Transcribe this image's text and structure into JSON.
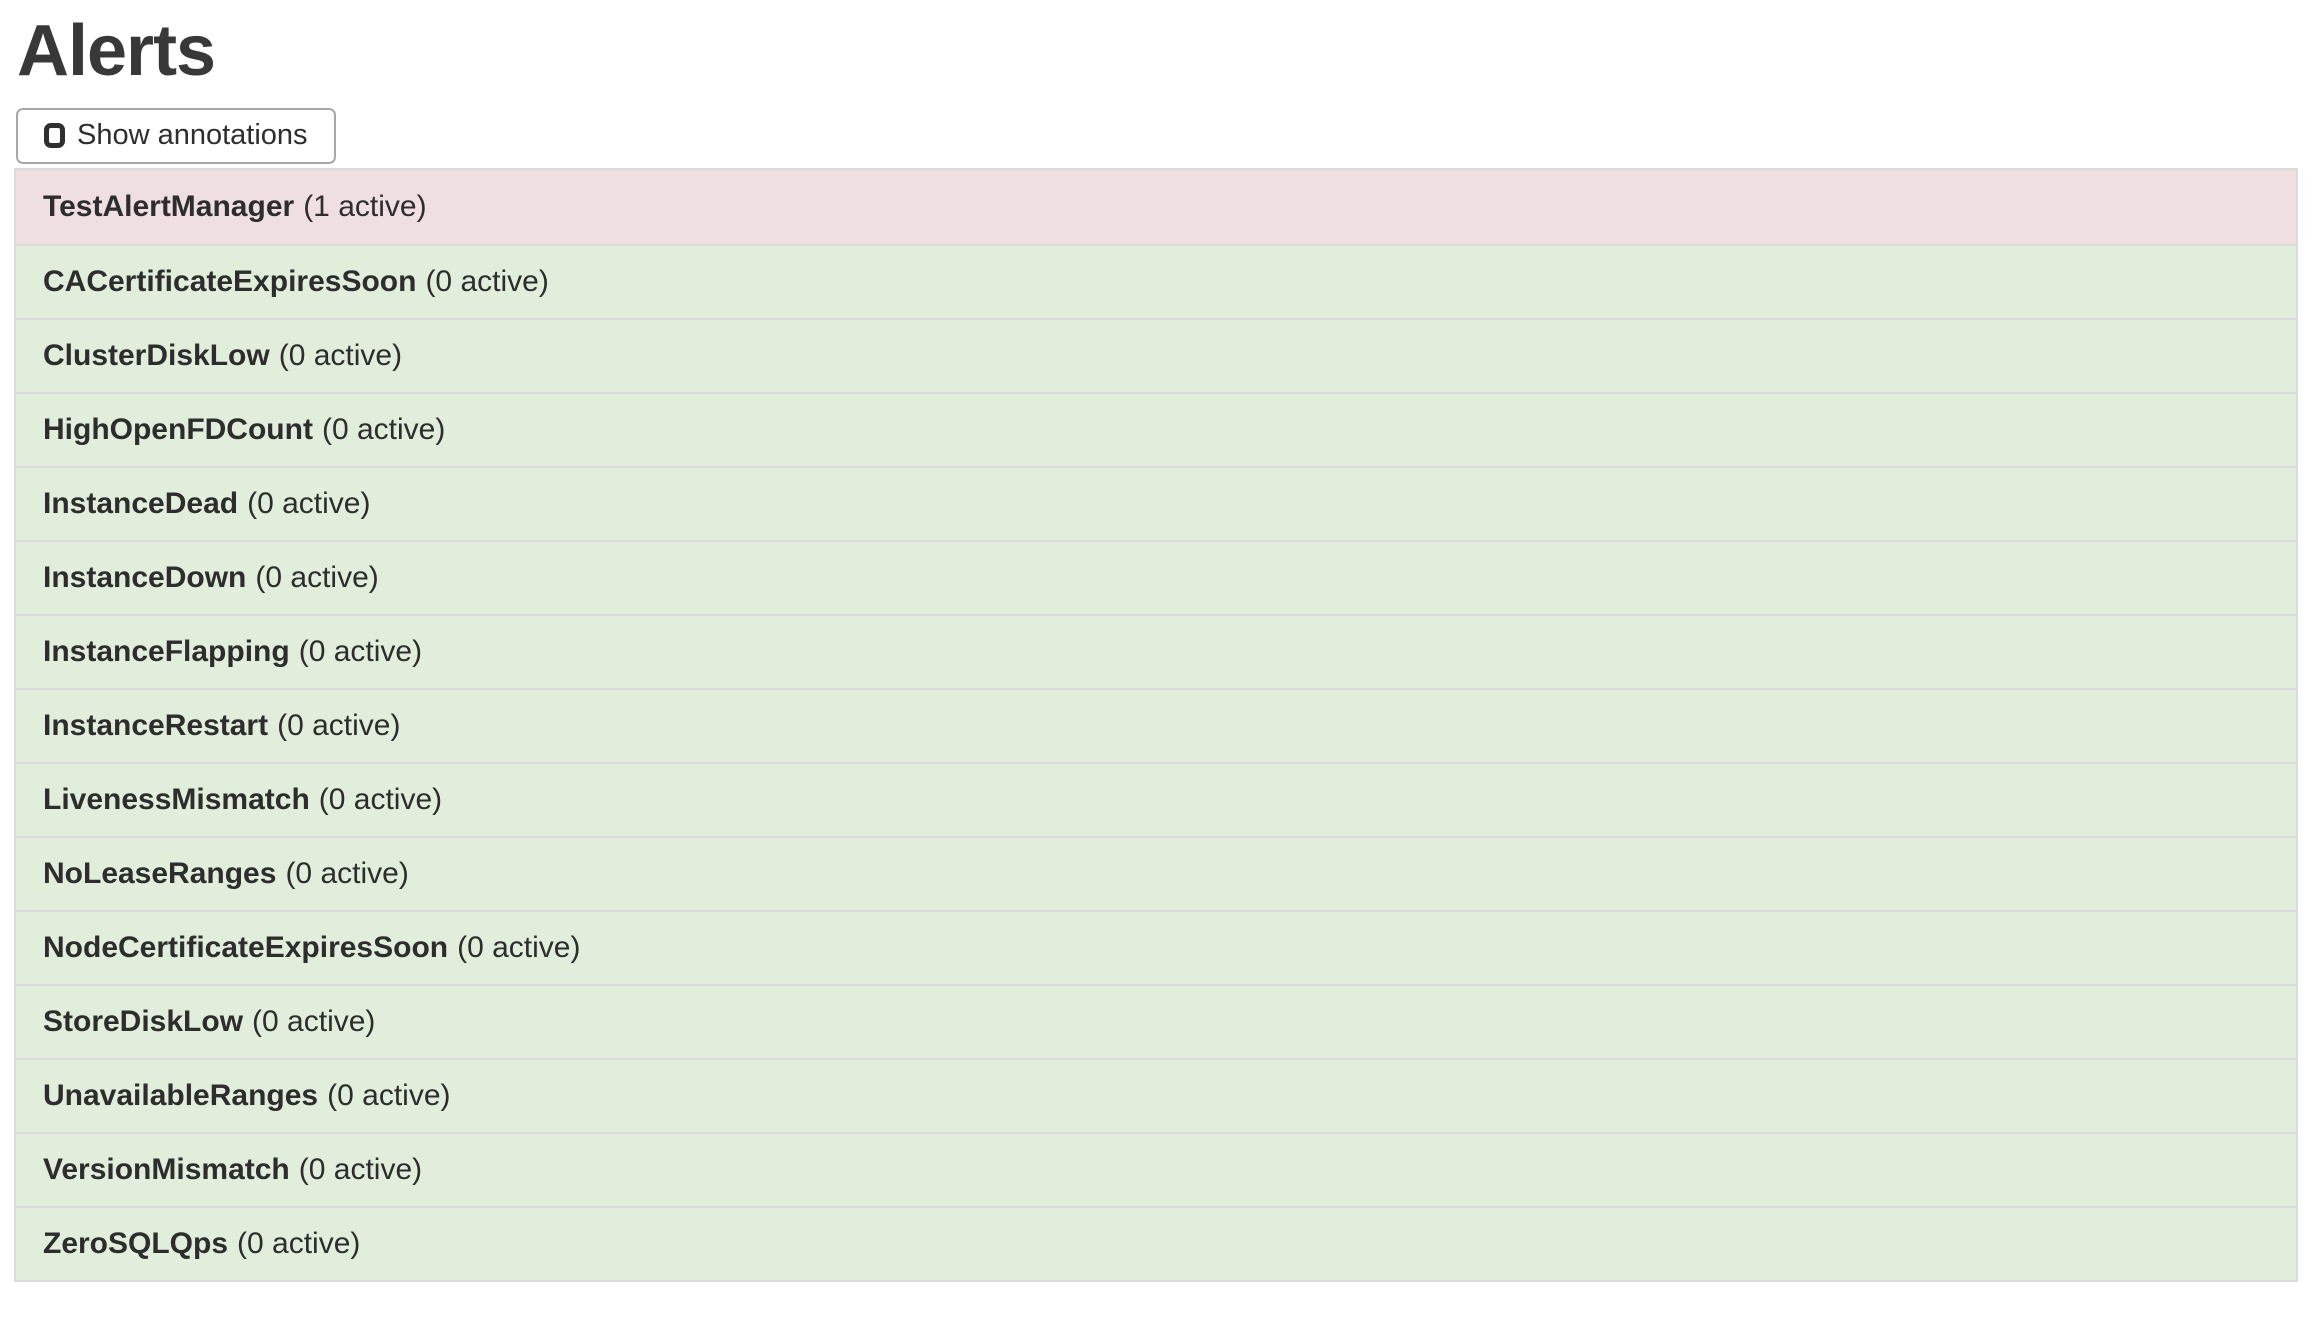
{
  "page": {
    "title": "Alerts"
  },
  "toolbar": {
    "show_annotations_label": "Show annotations",
    "show_annotations_checked": false
  },
  "alerts": [
    {
      "name": "TestAlertManager",
      "count_label": "(1 active)",
      "state": "firing"
    },
    {
      "name": "CACertificateExpiresSoon",
      "count_label": "(0 active)",
      "state": "inactive"
    },
    {
      "name": "ClusterDiskLow",
      "count_label": "(0 active)",
      "state": "inactive"
    },
    {
      "name": "HighOpenFDCount",
      "count_label": "(0 active)",
      "state": "inactive"
    },
    {
      "name": "InstanceDead",
      "count_label": "(0 active)",
      "state": "inactive"
    },
    {
      "name": "InstanceDown",
      "count_label": "(0 active)",
      "state": "inactive"
    },
    {
      "name": "InstanceFlapping",
      "count_label": "(0 active)",
      "state": "inactive"
    },
    {
      "name": "InstanceRestart",
      "count_label": "(0 active)",
      "state": "inactive"
    },
    {
      "name": "LivenessMismatch",
      "count_label": "(0 active)",
      "state": "inactive"
    },
    {
      "name": "NoLeaseRanges",
      "count_label": "(0 active)",
      "state": "inactive"
    },
    {
      "name": "NodeCertificateExpiresSoon",
      "count_label": "(0 active)",
      "state": "inactive"
    },
    {
      "name": "StoreDiskLow",
      "count_label": "(0 active)",
      "state": "inactive"
    },
    {
      "name": "UnavailableRanges",
      "count_label": "(0 active)",
      "state": "inactive"
    },
    {
      "name": "VersionMismatch",
      "count_label": "(0 active)",
      "state": "inactive"
    },
    {
      "name": "ZeroSQLQps",
      "count_label": "(0 active)",
      "state": "inactive"
    }
  ],
  "colors": {
    "firing_bg": "#efdfe0",
    "inactive_bg": "#e1eedc",
    "row_border": "#d9dbdc",
    "text": "#2d2d2d"
  }
}
